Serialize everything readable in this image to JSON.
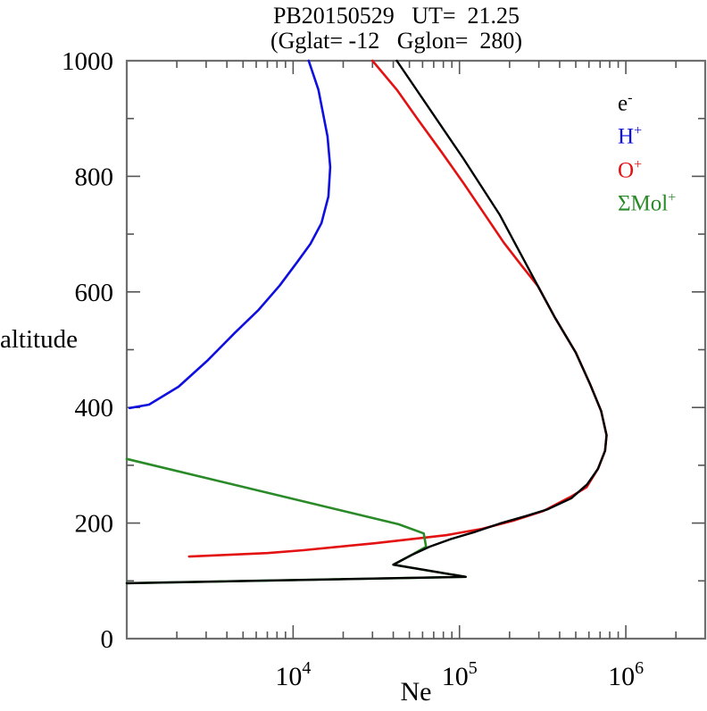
{
  "chart_data": {
    "type": "line",
    "title": "PB20150529   UT=  21.25",
    "subtitle": "(Gglat= -12   Gglon=  280)",
    "xlabel": "Ne",
    "ylabel": "altitude",
    "xscale": "log",
    "xlim": [
      1000,
      3000000
    ],
    "ylim": [
      0,
      1000
    ],
    "grid": false,
    "legend_position": "top-right-inside",
    "frame_color": "#6e6e6e",
    "tick_color": "#555555",
    "x_major_ticks": [
      {
        "value": 10000,
        "base": "10",
        "exp": "4"
      },
      {
        "value": 100000,
        "base": "10",
        "exp": "5"
      },
      {
        "value": 1000000,
        "base": "10",
        "exp": "6"
      }
    ],
    "x_minor_tick_decades": [
      1000,
      10000,
      100000,
      1000000
    ],
    "y_major_ticks": [
      0,
      200,
      400,
      600,
      800,
      1000
    ],
    "y_minor_ticks": [
      100,
      300,
      500,
      700,
      900
    ],
    "legend": [
      {
        "base": "e",
        "sup": "-",
        "color": "#000000",
        "series": "e-"
      },
      {
        "base": "H",
        "sup": "+",
        "color": "#0f0fe0",
        "series": "H+"
      },
      {
        "base": "O",
        "sup": "+",
        "color": "#e31111",
        "series": "O+"
      },
      {
        "base": "ΣMol",
        "sup": "+",
        "color": "#2a8a28",
        "series": "Mol+"
      }
    ],
    "series": [
      {
        "name": "H+",
        "slug": "h-plus",
        "color": "#0f0fe0",
        "width": 2.6,
        "points": [
          [
            12400,
            1000
          ],
          [
            14200,
            950
          ],
          [
            16100,
            869
          ],
          [
            16700,
            816
          ],
          [
            16300,
            765
          ],
          [
            14800,
            719
          ],
          [
            12700,
            683
          ],
          [
            10600,
            652
          ],
          [
            8300,
            611
          ],
          [
            6200,
            569
          ],
          [
            4460,
            529
          ],
          [
            3080,
            482
          ],
          [
            2050,
            436
          ],
          [
            1360,
            405
          ],
          [
            1040,
            399
          ]
        ]
      },
      {
        "name": "O+",
        "slug": "o-plus",
        "color": "#e31111",
        "width": 2.6,
        "points": [
          [
            30000,
            1000
          ],
          [
            42000,
            950
          ],
          [
            57000,
            896
          ],
          [
            78000,
            842
          ],
          [
            106000,
            788
          ],
          [
            145000,
            730
          ],
          [
            185000,
            685
          ],
          [
            237000,
            645
          ],
          [
            296000,
            610
          ],
          [
            374000,
            556
          ],
          [
            500000,
            495
          ],
          [
            610000,
            440
          ],
          [
            710000,
            394
          ],
          [
            766000,
            352
          ],
          [
            750000,
            325
          ],
          [
            680000,
            294
          ],
          [
            580000,
            262
          ],
          [
            470000,
            246
          ],
          [
            320000,
            221
          ],
          [
            210000,
            204
          ],
          [
            136000,
            190
          ],
          [
            83000,
            179
          ],
          [
            50700,
            172
          ],
          [
            31000,
            165
          ],
          [
            18900,
            159
          ],
          [
            11500,
            153
          ],
          [
            7000,
            148
          ],
          [
            4000,
            145
          ],
          [
            2370,
            142
          ]
        ]
      },
      {
        "name": "Mol+",
        "slug": "mol-plus",
        "color": "#2a8a28",
        "width": 2.6,
        "points": [
          [
            1000,
            311
          ],
          [
            43000,
            198
          ],
          [
            61000,
            182
          ],
          [
            63000,
            159
          ],
          [
            51000,
            144
          ],
          [
            40000,
            128
          ],
          [
            109000,
            107
          ],
          [
            1000,
            96
          ]
        ]
      },
      {
        "name": "e-",
        "slug": "e-minus",
        "color": "#000000",
        "width": 2.4,
        "points": [
          [
            42000,
            1000
          ],
          [
            106000,
            830
          ],
          [
            174000,
            734
          ],
          [
            296000,
            610
          ],
          [
            374000,
            556
          ],
          [
            500000,
            495
          ],
          [
            610000,
            440
          ],
          [
            710000,
            394
          ],
          [
            766000,
            352
          ],
          [
            750000,
            325
          ],
          [
            680000,
            294
          ],
          [
            585000,
            267
          ],
          [
            470000,
            243
          ],
          [
            340000,
            224
          ],
          [
            250000,
            212
          ],
          [
            174000,
            199
          ],
          [
            125000,
            185
          ],
          [
            88000,
            172
          ],
          [
            66000,
            159
          ],
          [
            51000,
            144
          ],
          [
            40000,
            128
          ],
          [
            109000,
            107
          ],
          [
            1000,
            96
          ]
        ]
      }
    ]
  }
}
